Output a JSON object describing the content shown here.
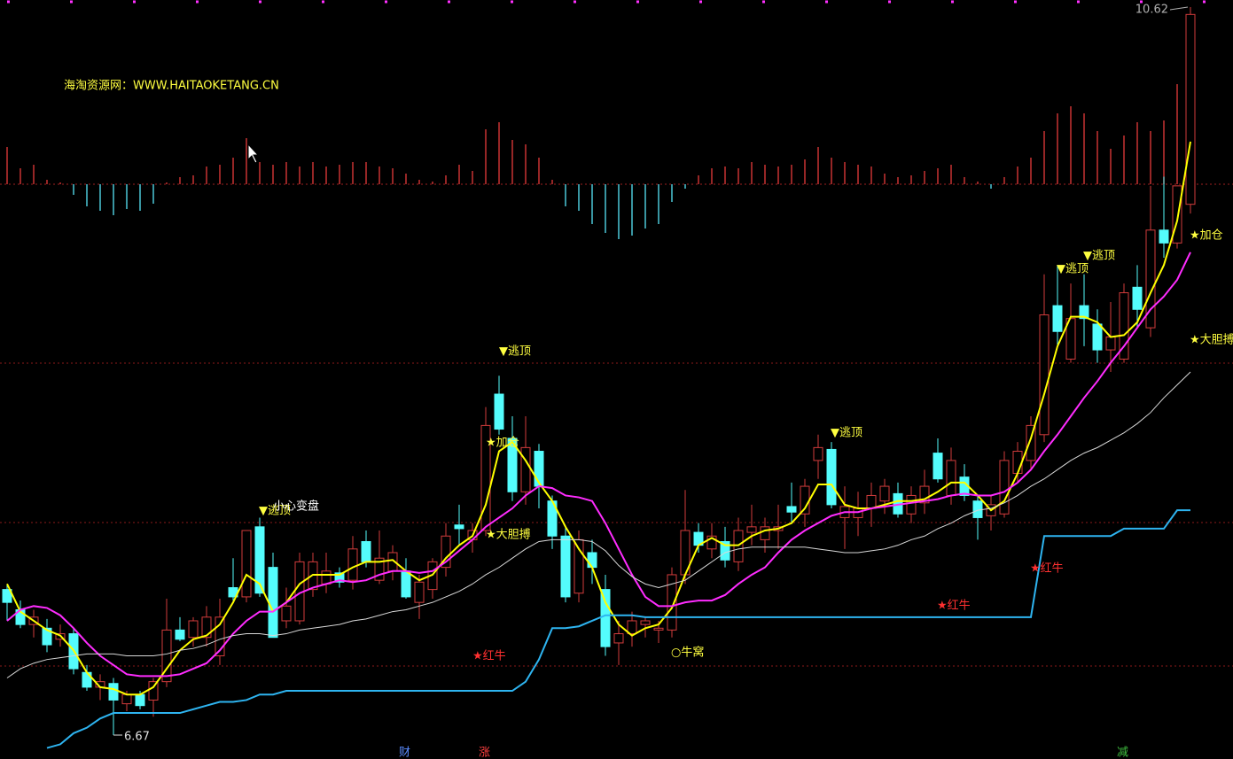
{
  "chart_data": {
    "type": "candlestick",
    "watermark": "海淘资源网：WWW.HAITAOKETANG.CN",
    "ylim": [
      6.67,
      10.62
    ],
    "up_color": "#d23c3c",
    "down_color": "#54fcfc",
    "ohlc": [
      [
        7.46,
        7.49,
        7.29,
        7.39
      ],
      [
        7.35,
        7.4,
        7.25,
        7.27
      ],
      [
        7.27,
        7.35,
        7.2,
        7.31
      ],
      [
        7.25,
        7.3,
        7.12,
        7.16
      ],
      [
        7.19,
        7.27,
        7.15,
        7.22
      ],
      [
        7.22,
        7.25,
        7.0,
        7.03
      ],
      [
        7.01,
        7.05,
        6.91,
        6.93
      ],
      [
        6.93,
        7.0,
        6.86,
        6.96
      ],
      [
        6.95,
        6.98,
        6.67,
        6.86
      ],
      [
        6.84,
        6.91,
        6.8,
        6.89
      ],
      [
        6.89,
        6.91,
        6.81,
        6.83
      ],
      [
        6.86,
        6.98,
        6.77,
        6.96
      ],
      [
        6.96,
        7.41,
        6.93,
        7.24
      ],
      [
        7.24,
        7.31,
        7.18,
        7.19
      ],
      [
        7.2,
        7.31,
        7.15,
        7.29
      ],
      [
        7.2,
        7.37,
        7.15,
        7.31
      ],
      [
        7.1,
        7.41,
        7.05,
        7.31
      ],
      [
        7.47,
        7.63,
        7.4,
        7.42
      ],
      [
        7.42,
        7.78,
        7.39,
        7.78
      ],
      [
        7.8,
        7.85,
        7.42,
        7.44
      ],
      [
        7.58,
        7.66,
        7.2,
        7.2
      ],
      [
        7.29,
        7.47,
        7.25,
        7.37
      ],
      [
        7.29,
        7.66,
        7.27,
        7.61
      ],
      [
        7.46,
        7.66,
        7.42,
        7.61
      ],
      [
        7.49,
        7.66,
        7.44,
        7.56
      ],
      [
        7.55,
        7.58,
        7.47,
        7.5
      ],
      [
        7.51,
        7.75,
        7.46,
        7.68
      ],
      [
        7.72,
        7.78,
        7.58,
        7.61
      ],
      [
        7.51,
        7.78,
        7.49,
        7.63
      ],
      [
        7.56,
        7.7,
        7.51,
        7.66
      ],
      [
        7.56,
        7.63,
        7.41,
        7.42
      ],
      [
        7.39,
        7.54,
        7.3,
        7.5
      ],
      [
        7.46,
        7.63,
        7.41,
        7.61
      ],
      [
        7.58,
        7.82,
        7.53,
        7.75
      ],
      [
        7.81,
        7.92,
        7.7,
        7.79
      ],
      [
        7.73,
        7.82,
        7.66,
        7.78
      ],
      [
        7.78,
        8.45,
        7.75,
        8.35
      ],
      [
        8.52,
        8.62,
        8.3,
        8.33
      ],
      [
        8.28,
        8.4,
        7.94,
        7.99
      ],
      [
        7.99,
        8.4,
        7.92,
        8.23
      ],
      [
        8.21,
        8.25,
        7.9,
        8.02
      ],
      [
        7.94,
        7.97,
        7.68,
        7.75
      ],
      [
        7.75,
        7.8,
        7.39,
        7.42
      ],
      [
        7.44,
        7.78,
        7.39,
        7.73
      ],
      [
        7.66,
        7.73,
        7.49,
        7.58
      ],
      [
        7.46,
        7.54,
        7.1,
        7.15
      ],
      [
        7.17,
        7.29,
        7.05,
        7.22
      ],
      [
        7.22,
        7.34,
        7.15,
        7.29
      ],
      [
        7.27,
        7.31,
        7.2,
        7.29
      ],
      [
        7.24,
        7.29,
        7.17,
        7.25
      ],
      [
        7.24,
        7.58,
        7.2,
        7.54
      ],
      [
        7.54,
        8.0,
        7.49,
        7.78
      ],
      [
        7.77,
        7.82,
        7.66,
        7.7
      ],
      [
        7.68,
        7.82,
        7.63,
        7.75
      ],
      [
        7.72,
        7.8,
        7.58,
        7.62
      ],
      [
        7.61,
        7.85,
        7.56,
        7.78
      ],
      [
        7.77,
        7.92,
        7.7,
        7.8
      ],
      [
        7.73,
        7.85,
        7.66,
        7.8
      ],
      [
        7.78,
        7.92,
        7.68,
        7.8
      ],
      [
        7.91,
        8.04,
        7.82,
        7.88
      ],
      [
        7.87,
        8.06,
        7.8,
        8.02
      ],
      [
        8.16,
        8.3,
        8.06,
        8.23
      ],
      [
        8.22,
        8.26,
        7.9,
        7.92
      ],
      [
        7.85,
        8.02,
        7.68,
        7.91
      ],
      [
        7.85,
        7.99,
        7.75,
        7.9
      ],
      [
        7.9,
        8.04,
        7.8,
        7.97
      ],
      [
        7.94,
        8.06,
        7.87,
        8.02
      ],
      [
        7.98,
        8.04,
        7.85,
        7.87
      ],
      [
        7.87,
        8.02,
        7.82,
        7.97
      ],
      [
        7.93,
        8.11,
        7.87,
        8.02
      ],
      [
        8.2,
        8.28,
        8.04,
        8.06
      ],
      [
        7.97,
        8.23,
        7.92,
        8.16
      ],
      [
        8.07,
        8.14,
        7.94,
        7.97
      ],
      [
        7.94,
        7.97,
        7.73,
        7.85
      ],
      [
        7.86,
        7.97,
        7.78,
        7.92
      ],
      [
        7.87,
        8.21,
        7.85,
        8.16
      ],
      [
        8.09,
        8.26,
        8.04,
        8.21
      ],
      [
        8.16,
        8.4,
        8.11,
        8.35
      ],
      [
        8.3,
        9.17,
        8.26,
        8.95
      ],
      [
        9.0,
        9.22,
        8.78,
        8.86
      ],
      [
        8.71,
        9.12,
        8.69,
        8.93
      ],
      [
        9.0,
        9.17,
        8.78,
        8.93
      ],
      [
        8.9,
        8.98,
        8.69,
        8.76
      ],
      [
        8.76,
        9.02,
        8.64,
        8.83
      ],
      [
        8.71,
        9.12,
        8.69,
        9.07
      ],
      [
        9.1,
        9.22,
        8.88,
        8.98
      ],
      [
        8.88,
        9.65,
        8.83,
        9.41
      ],
      [
        9.41,
        9.7,
        9.26,
        9.34
      ],
      [
        9.34,
        9.65,
        9.31,
        9.65
      ],
      [
        9.55,
        10.62,
        9.5,
        10.58
      ]
    ],
    "lines": [
      {
        "color": "#ffff00",
        "width": 2,
        "values": [
          7.49,
          7.34,
          7.29,
          7.24,
          7.21,
          7.13,
          7.01,
          6.93,
          6.92,
          6.89,
          6.89,
          6.93,
          7.03,
          7.13,
          7.19,
          7.21,
          7.27,
          7.39,
          7.54,
          7.49,
          7.34,
          7.39,
          7.49,
          7.54,
          7.54,
          7.54,
          7.58,
          7.61,
          7.61,
          7.62,
          7.56,
          7.51,
          7.54,
          7.63,
          7.7,
          7.75,
          7.92,
          8.21,
          8.26,
          8.16,
          8.04,
          7.94,
          7.8,
          7.68,
          7.58,
          7.39,
          7.27,
          7.21,
          7.25,
          7.27,
          7.36,
          7.54,
          7.7,
          7.74,
          7.7,
          7.7,
          7.75,
          7.78,
          7.79,
          7.82,
          7.9,
          8.03,
          8.03,
          7.92,
          7.9,
          7.9,
          7.92,
          7.94,
          7.94,
          7.95,
          7.99,
          8.04,
          8.04,
          7.97,
          7.89,
          7.94,
          8.09,
          8.28,
          8.52,
          8.78,
          8.94,
          8.94,
          8.91,
          8.83,
          8.84,
          8.91,
          9.07,
          9.22,
          9.46,
          9.89
        ]
      },
      {
        "color": "#ff2cff",
        "width": 2,
        "values": [
          7.29,
          7.35,
          7.37,
          7.36,
          7.32,
          7.25,
          7.17,
          7.1,
          7.05,
          7.0,
          6.99,
          6.99,
          6.99,
          7.0,
          7.03,
          7.06,
          7.13,
          7.22,
          7.29,
          7.34,
          7.34,
          7.39,
          7.44,
          7.47,
          7.49,
          7.51,
          7.5,
          7.51,
          7.54,
          7.56,
          7.56,
          7.55,
          7.56,
          7.61,
          7.67,
          7.73,
          7.8,
          7.85,
          7.9,
          7.97,
          8.02,
          8.01,
          7.97,
          7.96,
          7.94,
          7.82,
          7.68,
          7.54,
          7.42,
          7.37,
          7.37,
          7.39,
          7.4,
          7.4,
          7.43,
          7.49,
          7.54,
          7.58,
          7.66,
          7.73,
          7.78,
          7.82,
          7.86,
          7.88,
          7.88,
          7.9,
          7.91,
          7.92,
          7.93,
          7.94,
          7.95,
          7.97,
          7.98,
          7.97,
          7.97,
          7.99,
          8.04,
          8.11,
          8.21,
          8.3,
          8.4,
          8.5,
          8.59,
          8.69,
          8.78,
          8.88,
          8.98,
          9.05,
          9.14,
          9.29
        ]
      },
      {
        "color": "#d8d8d8",
        "width": 1,
        "values": [
          6.98,
          7.03,
          7.06,
          7.08,
          7.09,
          7.1,
          7.11,
          7.11,
          7.11,
          7.1,
          7.1,
          7.1,
          7.11,
          7.13,
          7.14,
          7.16,
          7.19,
          7.21,
          7.22,
          7.22,
          7.21,
          7.22,
          7.24,
          7.25,
          7.26,
          7.27,
          7.29,
          7.3,
          7.32,
          7.34,
          7.35,
          7.37,
          7.39,
          7.42,
          7.45,
          7.49,
          7.54,
          7.58,
          7.63,
          7.68,
          7.72,
          7.73,
          7.73,
          7.73,
          7.72,
          7.67,
          7.59,
          7.53,
          7.49,
          7.47,
          7.49,
          7.51,
          7.56,
          7.61,
          7.66,
          7.68,
          7.69,
          7.69,
          7.69,
          7.69,
          7.69,
          7.68,
          7.67,
          7.66,
          7.66,
          7.67,
          7.68,
          7.7,
          7.73,
          7.75,
          7.79,
          7.82,
          7.86,
          7.89,
          7.9,
          7.93,
          7.97,
          8.02,
          8.06,
          8.11,
          8.16,
          8.2,
          8.23,
          8.27,
          8.31,
          8.36,
          8.42,
          8.5,
          8.57,
          8.64
        ]
      },
      {
        "color": "#2eb4f0",
        "width": 2,
        "values": [
          null,
          null,
          null,
          6.6,
          6.62,
          6.68,
          6.71,
          6.76,
          6.79,
          6.79,
          6.79,
          6.79,
          6.79,
          6.79,
          6.81,
          6.83,
          6.85,
          6.85,
          6.86,
          6.89,
          6.89,
          6.91,
          6.91,
          6.91,
          6.91,
          6.91,
          6.91,
          6.91,
          6.91,
          6.91,
          6.91,
          6.91,
          6.91,
          6.91,
          6.91,
          6.91,
          6.91,
          6.91,
          6.91,
          6.96,
          7.08,
          7.25,
          7.25,
          7.26,
          7.29,
          7.32,
          7.32,
          7.32,
          7.31,
          7.31,
          7.31,
          7.31,
          7.31,
          7.31,
          7.31,
          7.31,
          7.31,
          7.31,
          7.31,
          7.31,
          7.31,
          7.31,
          7.31,
          7.31,
          7.31,
          7.31,
          7.31,
          7.31,
          7.31,
          7.31,
          7.31,
          7.31,
          7.31,
          7.31,
          7.31,
          7.31,
          7.31,
          7.31,
          7.75,
          7.75,
          7.75,
          7.75,
          7.75,
          7.75,
          7.79,
          7.79,
          7.79,
          7.79,
          7.89,
          7.89
        ]
      }
    ],
    "histogram": {
      "up_color": "#c83232",
      "down_color": "#4cc8d8",
      "values": [
        4.2,
        1.8,
        2.2,
        0.5,
        0.2,
        -1.2,
        -2.5,
        -3.0,
        -3.5,
        -2.8,
        -3.0,
        -2.2,
        0.2,
        0.8,
        1.0,
        2.0,
        2.2,
        3.0,
        5.2,
        2.5,
        2.2,
        2.5,
        2.0,
        2.5,
        2.0,
        2.2,
        2.5,
        2.5,
        2.0,
        1.8,
        1.2,
        0.5,
        0.3,
        1.0,
        2.2,
        1.5,
        6.2,
        7.0,
        5.0,
        4.5,
        3.0,
        0.5,
        -2.5,
        -3.0,
        -4.5,
        -5.5,
        -6.2,
        -5.8,
        -5.0,
        -4.5,
        -2.0,
        -0.5,
        1.0,
        1.8,
        2.0,
        1.8,
        2.5,
        2.2,
        2.0,
        2.2,
        2.8,
        4.2,
        3.0,
        2.5,
        2.2,
        2.0,
        1.2,
        0.8,
        1.0,
        1.5,
        1.8,
        2.2,
        0.8,
        0.3,
        -0.5,
        0.8,
        2.0,
        3.0,
        6.0,
        8.0,
        8.8,
        8.0,
        6.0,
        4.0,
        5.5,
        7.0,
        6.0,
        7.2,
        11.3,
        15.0
      ]
    },
    "annotations": [
      "▼逃顶",
      "小心变盘",
      "★大胆搏",
      "★红牛",
      "▼逃顶",
      "★加仓",
      "○牛窝",
      "▼逃顶",
      "★红牛",
      "★红牛",
      "▼逃顶",
      "▼逃顶",
      "★加仓",
      "★大胆搏"
    ],
    "bottom_labels": [
      "财",
      "涨",
      "减"
    ]
  }
}
